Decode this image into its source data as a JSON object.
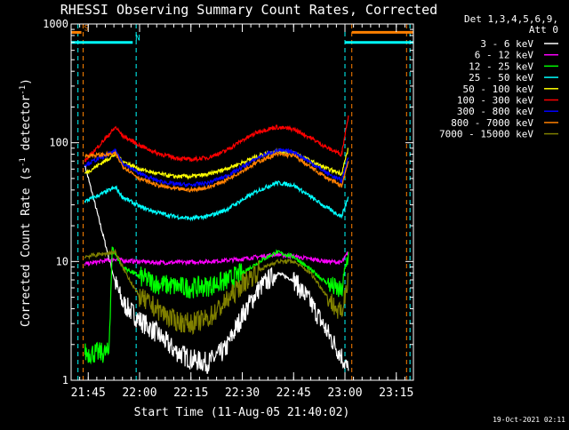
{
  "chart_data": {
    "type": "line",
    "title": "RHESSI Observing Summary Count Rates, Corrected",
    "ylabel": "Corrected Count Rate (s-1 detector-1)",
    "ylabel_parts": [
      "Corrected Count Rate (s",
      "-1",
      " detector",
      "-1",
      ")"
    ],
    "xlabel": "Start Time (11-Aug-05 21:40:02)",
    "yscale": "log",
    "ylim": [
      1,
      1000
    ],
    "y_ticks": [
      {
        "value": 1,
        "label": "1"
      },
      {
        "value": 10,
        "label": "10"
      },
      {
        "value": 100,
        "label": "100"
      },
      {
        "value": 1000,
        "label": "1000"
      }
    ],
    "xlim": [
      "21:40",
      "23:20"
    ],
    "x_ticks": [
      "21:45",
      "22:00",
      "22:15",
      "22:30",
      "22:45",
      "23:00",
      "23:15"
    ],
    "detector_info": [
      "Det 1,3,4,5,6,9,",
      "Att 0"
    ],
    "footer_date": "19-Oct-2021 02:11",
    "flags": [
      {
        "label": "S",
        "color": "#ff8000",
        "x_start": "21:40",
        "x_end": "21:43",
        "x_resume": "23:02",
        "x_resume_end": "23:20",
        "value": 850
      },
      {
        "label": "N",
        "color": "#00ffff",
        "x_start": "21:40",
        "x_end": "21:58",
        "x_resume": "23:00",
        "x_resume_end": "23:20",
        "value": 700
      }
    ],
    "vlines": [
      {
        "x": "21:42",
        "color": "#00ffff"
      },
      {
        "x": "21:43.5",
        "color": "#ff8000"
      },
      {
        "x": "21:59",
        "color": "#00ffff"
      },
      {
        "x": "23:00",
        "color": "#00ffff"
      },
      {
        "x": "23:02",
        "color": "#ff8000"
      },
      {
        "x": "23:18",
        "color": "#ff8000"
      },
      {
        "x": "23:19",
        "color": "#00ffff"
      }
    ],
    "series": [
      {
        "name": "3 - 6 keV",
        "color": "#ffffff",
        "x": [
          "21:44",
          "21:53",
          "21:55",
          "22:00",
          "22:05",
          "22:10",
          "22:15",
          "22:20",
          "22:25",
          "22:30",
          "22:35",
          "22:40",
          "22:45",
          "22:50",
          "22:55",
          "22:59",
          "23:01"
        ],
        "values": [
          65,
          6.5,
          4.5,
          3.2,
          2.5,
          1.8,
          1.5,
          1.4,
          1.8,
          3.5,
          6,
          8,
          7,
          4.5,
          2.5,
          1.6,
          1.2
        ]
      },
      {
        "name": "6 - 12 keV",
        "color": "#ff00ff",
        "x": [
          "21:44",
          "21:53",
          "21:55",
          "22:00",
          "22:05",
          "22:10",
          "22:15",
          "22:20",
          "22:25",
          "22:30",
          "22:35",
          "22:40",
          "22:45",
          "22:50",
          "22:55",
          "22:59",
          "23:01"
        ],
        "values": [
          9.5,
          10.5,
          10.2,
          10,
          9.8,
          9.8,
          9.9,
          10,
          10.2,
          10.5,
          11,
          11.5,
          11,
          10.5,
          10,
          9.8,
          12
        ]
      },
      {
        "name": "12 - 25 keV",
        "color": "#00ff00",
        "x": [
          "21:44",
          "21:51",
          "21:52",
          "21:55",
          "22:00",
          "22:05",
          "22:10",
          "22:15",
          "22:20",
          "22:25",
          "22:30",
          "22:35",
          "22:40",
          "22:45",
          "22:50",
          "22:55",
          "22:59",
          "23:01"
        ],
        "values": [
          1.7,
          1.7,
          13,
          9,
          7.5,
          6.5,
          6.2,
          6,
          6.2,
          6.8,
          8,
          10,
          12,
          11,
          8.5,
          6.5,
          5.5,
          12
        ]
      },
      {
        "name": "25 - 50 keV",
        "color": "#00ffff",
        "x": [
          "21:44",
          "21:53",
          "21:55",
          "22:00",
          "22:05",
          "22:10",
          "22:15",
          "22:20",
          "22:25",
          "22:30",
          "22:35",
          "22:40",
          "22:45",
          "22:50",
          "22:55",
          "22:59",
          "23:01"
        ],
        "values": [
          32,
          42,
          35,
          29,
          26,
          24,
          23,
          24,
          27,
          33,
          40,
          46,
          44,
          35,
          28,
          24,
          35
        ]
      },
      {
        "name": "50 - 100 keV",
        "color": "#ffff00",
        "x": [
          "21:44",
          "21:53",
          "21:55",
          "22:00",
          "22:05",
          "22:10",
          "22:15",
          "22:20",
          "22:25",
          "22:30",
          "22:35",
          "22:40",
          "22:45",
          "22:50",
          "22:55",
          "22:59",
          "23:01"
        ],
        "values": [
          55,
          80,
          70,
          60,
          55,
          52,
          52,
          54,
          60,
          68,
          78,
          85,
          83,
          70,
          60,
          55,
          90
        ]
      },
      {
        "name": "100 - 300 keV",
        "color": "#ff0000",
        "x": [
          "21:44",
          "21:53",
          "21:55",
          "22:00",
          "22:05",
          "22:10",
          "22:15",
          "22:20",
          "22:25",
          "22:30",
          "22:35",
          "22:40",
          "22:45",
          "22:50",
          "22:55",
          "22:59",
          "23:01"
        ],
        "values": [
          70,
          135,
          115,
          95,
          82,
          75,
          72,
          75,
          85,
          105,
          125,
          135,
          130,
          110,
          90,
          80,
          170
        ]
      },
      {
        "name": "300 - 800 keV",
        "color": "#0000ff",
        "x": [
          "21:44",
          "21:53",
          "21:55",
          "22:00",
          "22:05",
          "22:10",
          "22:15",
          "22:20",
          "22:25",
          "22:30",
          "22:35",
          "22:40",
          "22:45",
          "22:50",
          "22:55",
          "22:59",
          "23:01"
        ],
        "values": [
          65,
          85,
          68,
          55,
          48,
          45,
          44,
          46,
          52,
          62,
          76,
          86,
          84,
          68,
          55,
          48,
          75
        ]
      },
      {
        "name": "800 - 7000 keV",
        "color": "#ff8000",
        "x": [
          "21:44",
          "21:53",
          "21:55",
          "22:00",
          "22:05",
          "22:10",
          "22:15",
          "22:20",
          "22:25",
          "22:30",
          "22:35",
          "22:40",
          "22:45",
          "22:50",
          "22:55",
          "22:59",
          "23:01"
        ],
        "values": [
          78,
          80,
          64,
          50,
          44,
          41,
          40,
          42,
          48,
          58,
          70,
          80,
          78,
          62,
          50,
          43,
          70
        ]
      },
      {
        "name": "7000 - 15000 keV",
        "color": "#808000",
        "x": [
          "21:44",
          "21:53",
          "21:55",
          "22:00",
          "22:05",
          "22:10",
          "22:15",
          "22:20",
          "22:25",
          "22:30",
          "22:35",
          "22:40",
          "22:45",
          "22:50",
          "22:55",
          "22:59",
          "23:01"
        ],
        "values": [
          11,
          12,
          9,
          5,
          4,
          3.2,
          3,
          3.3,
          4.5,
          6.5,
          8.5,
          10,
          10,
          8,
          5,
          3.5,
          8
        ]
      }
    ]
  }
}
